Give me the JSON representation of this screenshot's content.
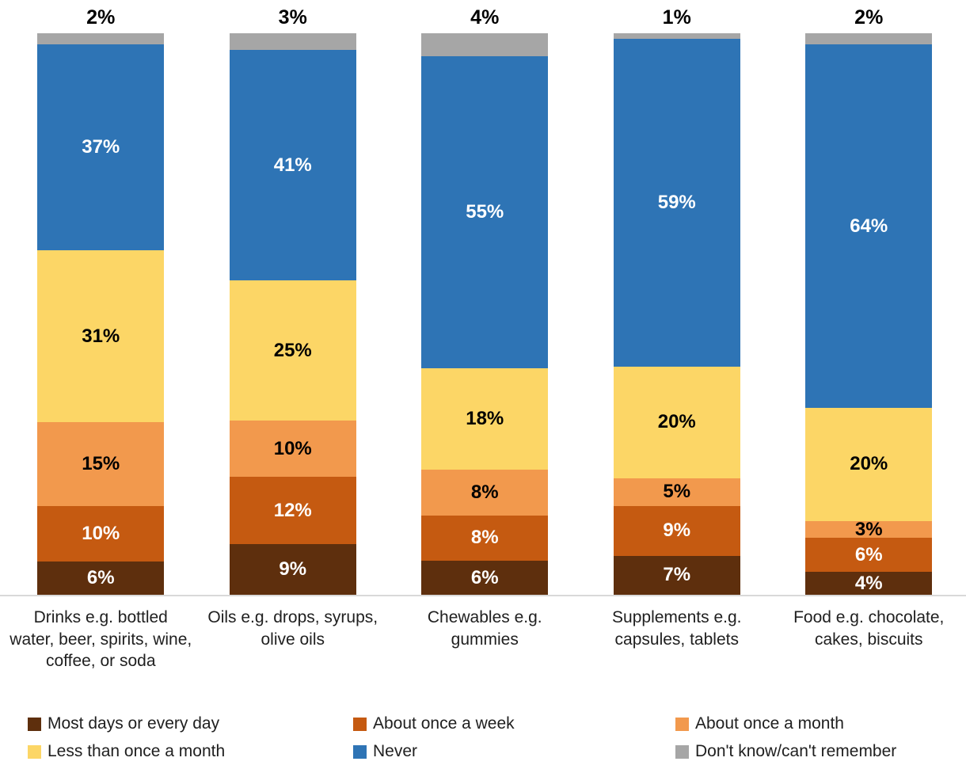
{
  "chart_data": {
    "type": "bar",
    "subtype": "stacked-100-percent-column",
    "unit": "%",
    "title": "",
    "xlabel": "",
    "ylabel": "",
    "grid": false,
    "legend_position": "bottom",
    "axis_line_color": "#D9D9D9",
    "categories": [
      "Drinks e.g. bottled water, beer, spirits, wine, coffee, or soda",
      "Oils e.g. drops, syrups, olive oils",
      "Chewables e.g. gummies",
      "Supplements e.g. capsules, tablets",
      "Food e.g. chocolate, cakes, biscuits"
    ],
    "series": [
      {
        "name": "Most days or every day",
        "color": "#5E2F0D",
        "label_color": "#FFFFFF",
        "label_position": "inside",
        "values": [
          6,
          9,
          6,
          7,
          4
        ]
      },
      {
        "name": "About once a week",
        "color": "#C55A11",
        "label_color": "#FFFFFF",
        "label_position": "inside",
        "values": [
          10,
          12,
          8,
          9,
          6
        ]
      },
      {
        "name": "About once a month",
        "color": "#F2994D",
        "label_color": "#000000",
        "label_position": "inside",
        "values": [
          15,
          10,
          8,
          5,
          3
        ]
      },
      {
        "name": "Less than once a month",
        "color": "#FCD666",
        "label_color": "#000000",
        "label_position": "inside",
        "values": [
          31,
          25,
          18,
          20,
          20
        ]
      },
      {
        "name": "Never",
        "color": "#2E74B5",
        "label_color": "#FFFFFF",
        "label_position": "inside",
        "values": [
          37,
          41,
          55,
          59,
          64
        ]
      },
      {
        "name": "Don't know/can't remember",
        "color": "#A6A6A6",
        "label_color": "#000000",
        "label_position": "above-bar",
        "values": [
          2,
          3,
          4,
          1,
          2
        ]
      }
    ]
  }
}
